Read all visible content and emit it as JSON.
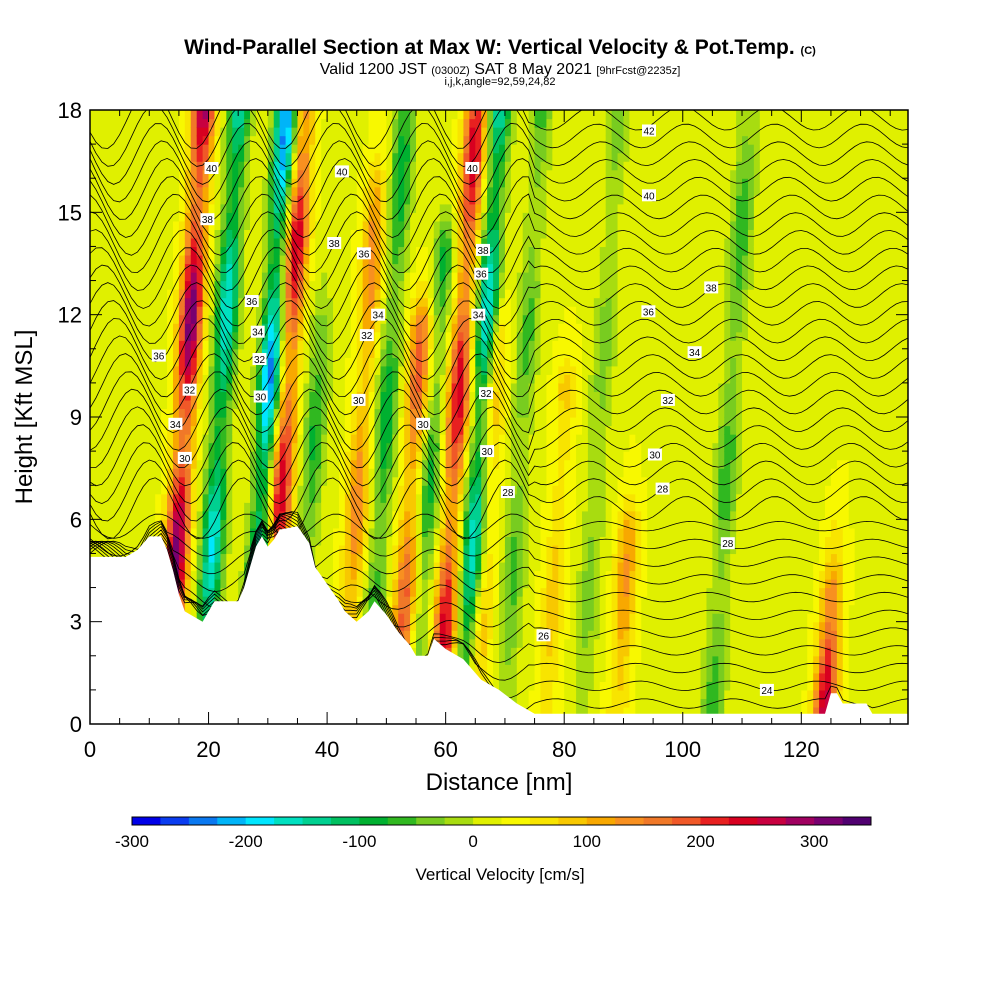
{
  "header": {
    "title_main": "Wind-Parallel Section at Max W: Vertical Velocity & Pot.Temp.",
    "title_mark": "(C)",
    "valid_prefix": "Valid 1200 JST",
    "valid_z": "(0300Z)",
    "valid_date": "SAT 8 May 2021",
    "valid_fcst": "[9hrFcst@2235z]",
    "indices": "i,j,k,angle=92,59,24,82"
  },
  "chart_data": {
    "type": "heatmap",
    "xlabel": "Distance [nm]",
    "ylabel": "Height [Kft MSL]",
    "xlim": [
      0,
      138
    ],
    "ylim": [
      0,
      18
    ],
    "xticks": [
      "0",
      "20",
      "40",
      "60",
      "80",
      "100",
      "120"
    ],
    "yticks": [
      "0",
      "3",
      "6",
      "9",
      "12",
      "15",
      "18"
    ],
    "fill_variable": "Vertical Velocity [cm/s]",
    "contour_variable": "Potential temperature (labels)",
    "colorbar": {
      "label": "Vertical Velocity [cm/s]",
      "ticks": [
        "-300",
        "-200",
        "-100",
        "0",
        "100",
        "200",
        "300"
      ],
      "min": -300,
      "max": 350,
      "step": 25,
      "colors": [
        "#0000e8",
        "#0a3cf0",
        "#0a78f0",
        "#00b4f8",
        "#00e6ff",
        "#00e0c0",
        "#00d090",
        "#00c060",
        "#00b030",
        "#30b820",
        "#78cc20",
        "#a8dc10",
        "#e0f000",
        "#f8f800",
        "#f8e400",
        "#f8c800",
        "#f8a800",
        "#f89020",
        "#f07828",
        "#f05828",
        "#e82020",
        "#d80020",
        "#c80040",
        "#a00060",
        "#780070",
        "#500070"
      ]
    },
    "updrafts": [
      {
        "x": 16,
        "w": 300,
        "ztop": 18
      },
      {
        "x": 33,
        "w": 240,
        "ztop": 18
      },
      {
        "x": 46,
        "w": 130,
        "ztop": 16
      },
      {
        "x": 55,
        "w": 170,
        "ztop": 12
      },
      {
        "x": 62,
        "w": 230,
        "ztop": 18
      },
      {
        "x": 68,
        "w": 90,
        "ztop": 12
      },
      {
        "x": 80,
        "w": 70,
        "ztop": 10
      },
      {
        "x": 92,
        "w": 110,
        "ztop": 6
      },
      {
        "x": 127,
        "w": 250,
        "ztop": 4
      }
    ],
    "downdrafts": [
      {
        "x": 22,
        "w": -200,
        "ztop": 18
      },
      {
        "x": 30,
        "w": -260,
        "ztop": 18
      },
      {
        "x": 38,
        "w": -100,
        "ztop": 12
      },
      {
        "x": 50,
        "w": -120,
        "ztop": 18
      },
      {
        "x": 58,
        "w": -110,
        "ztop": 14
      },
      {
        "x": 66,
        "w": -210,
        "ztop": 18
      },
      {
        "x": 73,
        "w": -80,
        "ztop": 18
      },
      {
        "x": 86,
        "w": -60,
        "ztop": 18
      },
      {
        "x": 108,
        "w": -90,
        "ztop": 18
      }
    ],
    "terrain": [
      {
        "x": 0,
        "z": 4.9
      },
      {
        "x": 6,
        "z": 4.9
      },
      {
        "x": 8,
        "z": 5.1
      },
      {
        "x": 9,
        "z": 5.3
      },
      {
        "x": 10,
        "z": 5.5
      },
      {
        "x": 12,
        "z": 5.5
      },
      {
        "x": 13,
        "z": 5.1
      },
      {
        "x": 14,
        "z": 4.5
      },
      {
        "x": 15,
        "z": 3.8
      },
      {
        "x": 16,
        "z": 3.3
      },
      {
        "x": 19,
        "z": 3.0
      },
      {
        "x": 20,
        "z": 3.3
      },
      {
        "x": 21,
        "z": 3.6
      },
      {
        "x": 25,
        "z": 3.6
      },
      {
        "x": 26,
        "z": 4.0
      },
      {
        "x": 27,
        "z": 4.6
      },
      {
        "x": 28,
        "z": 5.2
      },
      {
        "x": 29,
        "z": 5.5
      },
      {
        "x": 30,
        "z": 5.2
      },
      {
        "x": 31,
        "z": 5.4
      },
      {
        "x": 32,
        "z": 5.7
      },
      {
        "x": 35,
        "z": 5.8
      },
      {
        "x": 37,
        "z": 5.3
      },
      {
        "x": 38,
        "z": 4.6
      },
      {
        "x": 40,
        "z": 4.1
      },
      {
        "x": 42,
        "z": 3.6
      },
      {
        "x": 43,
        "z": 3.3
      },
      {
        "x": 45,
        "z": 3.0
      },
      {
        "x": 47,
        "z": 3.3
      },
      {
        "x": 48,
        "z": 3.6
      },
      {
        "x": 50,
        "z": 3.2
      },
      {
        "x": 52,
        "z": 2.7
      },
      {
        "x": 54,
        "z": 2.3
      },
      {
        "x": 55,
        "z": 2.0
      },
      {
        "x": 57,
        "z": 2.0
      },
      {
        "x": 58,
        "z": 2.5
      },
      {
        "x": 60,
        "z": 2.2
      },
      {
        "x": 63,
        "z": 1.9
      },
      {
        "x": 66,
        "z": 1.3
      },
      {
        "x": 69,
        "z": 1.0
      },
      {
        "x": 72,
        "z": 0.6
      },
      {
        "x": 75,
        "z": 0.3
      },
      {
        "x": 124,
        "z": 0.3
      },
      {
        "x": 125,
        "z": 0.9
      },
      {
        "x": 126,
        "z": 0.9
      },
      {
        "x": 127,
        "z": 0.6
      },
      {
        "x": 131,
        "z": 0.6
      },
      {
        "x": 132,
        "z": 0.3
      },
      {
        "x": 138,
        "z": 0.3
      }
    ],
    "isentrope_labels": [
      {
        "text": "40",
        "x": 20.5,
        "z": 16.3
      },
      {
        "text": "40",
        "x": 42.5,
        "z": 16.2
      },
      {
        "text": "40",
        "x": 64.5,
        "z": 16.3
      },
      {
        "text": "42",
        "x": 94.3,
        "z": 17.4
      },
      {
        "text": "40",
        "x": 94.3,
        "z": 15.5
      },
      {
        "text": "38",
        "x": 19.8,
        "z": 14.8
      },
      {
        "text": "38",
        "x": 41.2,
        "z": 14.1
      },
      {
        "text": "36",
        "x": 46.2,
        "z": 13.8
      },
      {
        "text": "38",
        "x": 66.3,
        "z": 13.9
      },
      {
        "text": "36",
        "x": 66.0,
        "z": 13.2
      },
      {
        "text": "38",
        "x": 104.8,
        "z": 12.8
      },
      {
        "text": "36",
        "x": 27.3,
        "z": 12.4
      },
      {
        "text": "36",
        "x": 94.2,
        "z": 12.1
      },
      {
        "text": "34",
        "x": 48.6,
        "z": 12.0
      },
      {
        "text": "34",
        "x": 65.5,
        "z": 12.0
      },
      {
        "text": "34",
        "x": 28.3,
        "z": 11.5
      },
      {
        "text": "32",
        "x": 46.7,
        "z": 11.4
      },
      {
        "text": "36",
        "x": 11.6,
        "z": 10.8
      },
      {
        "text": "34",
        "x": 102.0,
        "z": 10.9
      },
      {
        "text": "32",
        "x": 28.6,
        "z": 10.7
      },
      {
        "text": "32",
        "x": 16.8,
        "z": 9.8
      },
      {
        "text": "32",
        "x": 66.8,
        "z": 9.7
      },
      {
        "text": "30",
        "x": 28.8,
        "z": 9.6
      },
      {
        "text": "30",
        "x": 45.3,
        "z": 9.5
      },
      {
        "text": "32",
        "x": 97.5,
        "z": 9.5
      },
      {
        "text": "34",
        "x": 14.4,
        "z": 8.8
      },
      {
        "text": "30",
        "x": 56.2,
        "z": 8.8
      },
      {
        "text": "30",
        "x": 67.0,
        "z": 8.0
      },
      {
        "text": "30",
        "x": 95.3,
        "z": 7.9
      },
      {
        "text": "30",
        "x": 16.0,
        "z": 7.8
      },
      {
        "text": "28",
        "x": 70.5,
        "z": 6.8
      },
      {
        "text": "28",
        "x": 96.6,
        "z": 6.9
      },
      {
        "text": "28",
        "x": 107.6,
        "z": 5.3
      },
      {
        "text": "26",
        "x": 76.5,
        "z": 2.6
      },
      {
        "text": "24",
        "x": 114.2,
        "z": 1.0
      }
    ]
  }
}
